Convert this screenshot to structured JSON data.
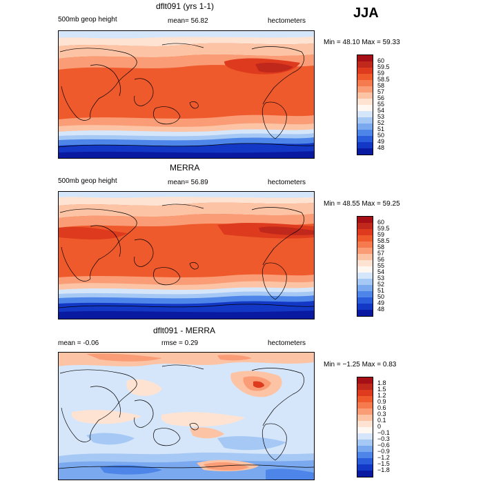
{
  "season": "JJA",
  "panels": [
    {
      "title": "dflt091 (yrs 1-1)",
      "left_label": "500mb geop height",
      "center_label": "mean=  56.82",
      "right_label": "hectometers",
      "minmax": "Min =  48.10 Max =  59.33",
      "colorbar": {
        "labels": [
          "60",
          "59.5",
          "59",
          "58.5",
          "58",
          "57",
          "56",
          "55",
          "54",
          "53",
          "52",
          "51",
          "50",
          "49",
          "48"
        ],
        "colors": [
          "#a50f15",
          "#c0281b",
          "#de3a1e",
          "#ef5a2c",
          "#f57a4d",
          "#fa9d76",
          "#fdc3a5",
          "#fee3d3",
          "#fff7f2",
          "#d6e6fa",
          "#a6c8f5",
          "#7aa9ef",
          "#4d86e8",
          "#2a5ddb",
          "#1338c6",
          "#0a1aa0"
        ]
      }
    },
    {
      "title": "MERRA",
      "left_label": "500mb geop height",
      "center_label": "mean=  56.89",
      "right_label": "hectometers",
      "minmax": "Min =  48.55 Max =  59.25",
      "colorbar": {
        "labels": [
          "60",
          "59.5",
          "59",
          "58.5",
          "58",
          "57",
          "56",
          "55",
          "54",
          "53",
          "52",
          "51",
          "50",
          "49",
          "48"
        ],
        "colors": [
          "#a50f15",
          "#c0281b",
          "#de3a1e",
          "#ef5a2c",
          "#f57a4d",
          "#fa9d76",
          "#fdc3a5",
          "#fee3d3",
          "#fff7f2",
          "#d6e6fa",
          "#a6c8f5",
          "#7aa9ef",
          "#4d86e8",
          "#2a5ddb",
          "#1338c6",
          "#0a1aa0"
        ]
      }
    },
    {
      "title": "dflt091 - MERRA",
      "left_label": "mean =   -0.06",
      "center_label": "rmse =    0.29",
      "right_label": "hectometers",
      "minmax": "Min =  −1.25 Max =   0.83",
      "colorbar": {
        "labels": [
          "1.8",
          "1.5",
          "1.2",
          "0.9",
          "0.6",
          "0.3",
          "0.1",
          "0",
          "−0.1",
          "−0.3",
          "−0.6",
          "−0.9",
          "−1.2",
          "−1.5",
          "−1.8"
        ],
        "colors": [
          "#a50f15",
          "#c0281b",
          "#de3a1e",
          "#ef5a2c",
          "#f57a4d",
          "#fa9d76",
          "#fdc3a5",
          "#fee3d3",
          "#fff7f2",
          "#d6e6fa",
          "#a6c8f5",
          "#7aa9ef",
          "#4d86e8",
          "#2a5ddb",
          "#1338c6",
          "#0a1aa0"
        ]
      }
    }
  ]
}
